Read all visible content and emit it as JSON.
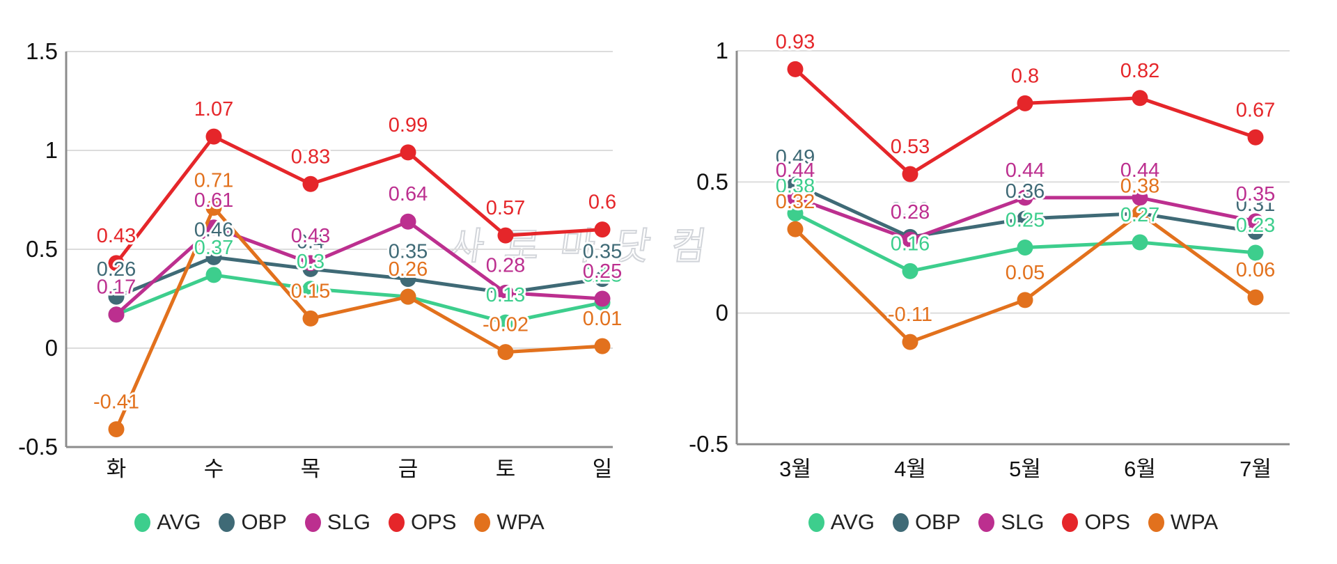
{
  "watermark": {
    "text": "사로마닷컴",
    "color": "#d2d5da"
  },
  "palette": {
    "grid": "#dcdcdc",
    "axis": "#8c8c8c",
    "tick_text": "#111111",
    "legend_text": "#222222"
  },
  "legend": {
    "items": [
      "AVG",
      "OBP",
      "SLG",
      "OPS",
      "WPA"
    ]
  },
  "chart_data": [
    {
      "type": "line",
      "title": "",
      "categories": [
        "화",
        "수",
        "목",
        "금",
        "토",
        "일"
      ],
      "ylim": [
        -0.5,
        1.5
      ],
      "yticks": [
        "1.5",
        "1",
        "0.5",
        "0",
        "-0.5"
      ],
      "grid": true,
      "legend_position": "bottom",
      "series": [
        {
          "name": "AVG",
          "color": "#3dce8d",
          "values": [
            0.17,
            0.37,
            0.3,
            0.26,
            0.13,
            0.23
          ],
          "labels": [
            "0.17",
            "0.37",
            "0.3",
            "0.26",
            "0.13",
            "0.23"
          ]
        },
        {
          "name": "OBP",
          "color": "#3f6a76",
          "values": [
            0.26,
            0.46,
            0.4,
            0.35,
            0.28,
            0.35
          ],
          "labels": [
            "0.26",
            "0.46",
            "0.4",
            "0.35",
            "0.28",
            "0.35"
          ]
        },
        {
          "name": "SLG",
          "color": "#bc2f8f",
          "values": [
            0.17,
            0.61,
            0.43,
            0.64,
            0.28,
            0.25
          ],
          "labels": [
            "0.17",
            "0.61",
            "0.43",
            "0.64",
            "0.28",
            "0.25"
          ]
        },
        {
          "name": "OPS",
          "color": "#e5262a",
          "values": [
            0.43,
            1.07,
            0.83,
            0.99,
            0.57,
            0.6
          ],
          "labels": [
            "0.43",
            "1.07",
            "0.83",
            "0.99",
            "0.57",
            "0.6"
          ]
        },
        {
          "name": "WPA",
          "color": "#e2711d",
          "values": [
            -0.41,
            0.71,
            0.15,
            0.26,
            -0.02,
            0.01
          ],
          "labels": [
            "-0.41",
            "0.71",
            "0.15",
            "0.26",
            "-0.02",
            "0.01"
          ]
        }
      ]
    },
    {
      "type": "line",
      "title": "",
      "categories": [
        "3월",
        "4월",
        "5월",
        "6월",
        "7월"
      ],
      "ylim": [
        -0.5,
        1
      ],
      "yticks": [
        "1",
        "0.5",
        "0",
        "-0.5"
      ],
      "grid": true,
      "legend_position": "bottom",
      "series": [
        {
          "name": "AVG",
          "color": "#3dce8d",
          "values": [
            0.38,
            0.16,
            0.25,
            0.27,
            0.23
          ],
          "labels": [
            "0.38",
            "0.16",
            "0.25",
            "0.27",
            "0.23"
          ]
        },
        {
          "name": "OBP",
          "color": "#3f6a76",
          "values": [
            0.49,
            0.29,
            0.36,
            0.38,
            0.31
          ],
          "labels": [
            "0.49",
            "0.29",
            "0.36",
            "0.38",
            "0.31"
          ]
        },
        {
          "name": "SLG",
          "color": "#bc2f8f",
          "values": [
            0.44,
            0.28,
            0.44,
            0.44,
            0.35
          ],
          "labels": [
            "0.44",
            "0.28",
            "0.44",
            "0.44",
            "0.35"
          ]
        },
        {
          "name": "OPS",
          "color": "#e5262a",
          "values": [
            0.93,
            0.53,
            0.8,
            0.82,
            0.67
          ],
          "labels": [
            "0.93",
            "0.53",
            "0.8",
            "0.82",
            "0.67"
          ]
        },
        {
          "name": "WPA",
          "color": "#e2711d",
          "values": [
            0.32,
            -0.11,
            0.05,
            0.38,
            0.06
          ],
          "labels": [
            "0.32",
            "-0.11",
            "0.05",
            "0.38",
            "0.06"
          ]
        }
      ]
    }
  ]
}
